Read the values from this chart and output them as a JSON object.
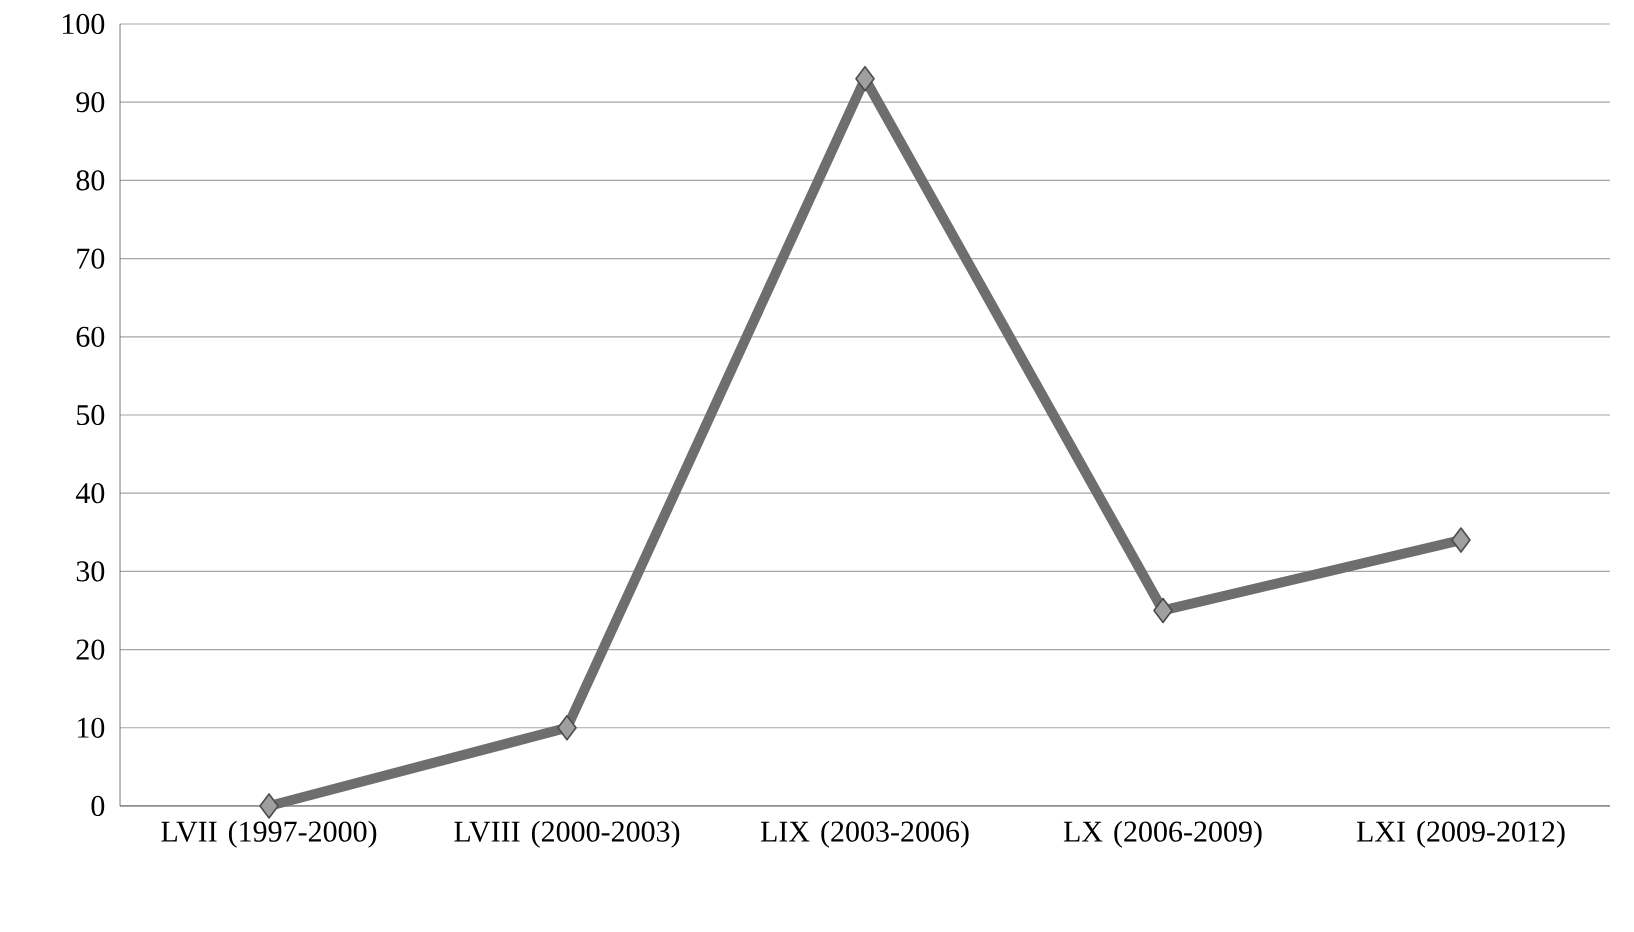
{
  "chart_data": {
    "type": "line",
    "categories": [
      "LVII (1997-2000)",
      "LVIII (2000-2003)",
      "LIX (2003-2006)",
      "LX (2006-2009)",
      "LXI (2009-2012)"
    ],
    "series": [
      {
        "color": "#6e6e6e",
        "values": [
          0,
          10,
          93,
          25,
          34
        ]
      }
    ],
    "ylim": [
      0,
      100
    ],
    "yticks": [
      0,
      10,
      20,
      30,
      40,
      50,
      60,
      70,
      80,
      90,
      100
    ],
    "grid": "y",
    "marker": "diamond",
    "line_style": "solid"
  }
}
